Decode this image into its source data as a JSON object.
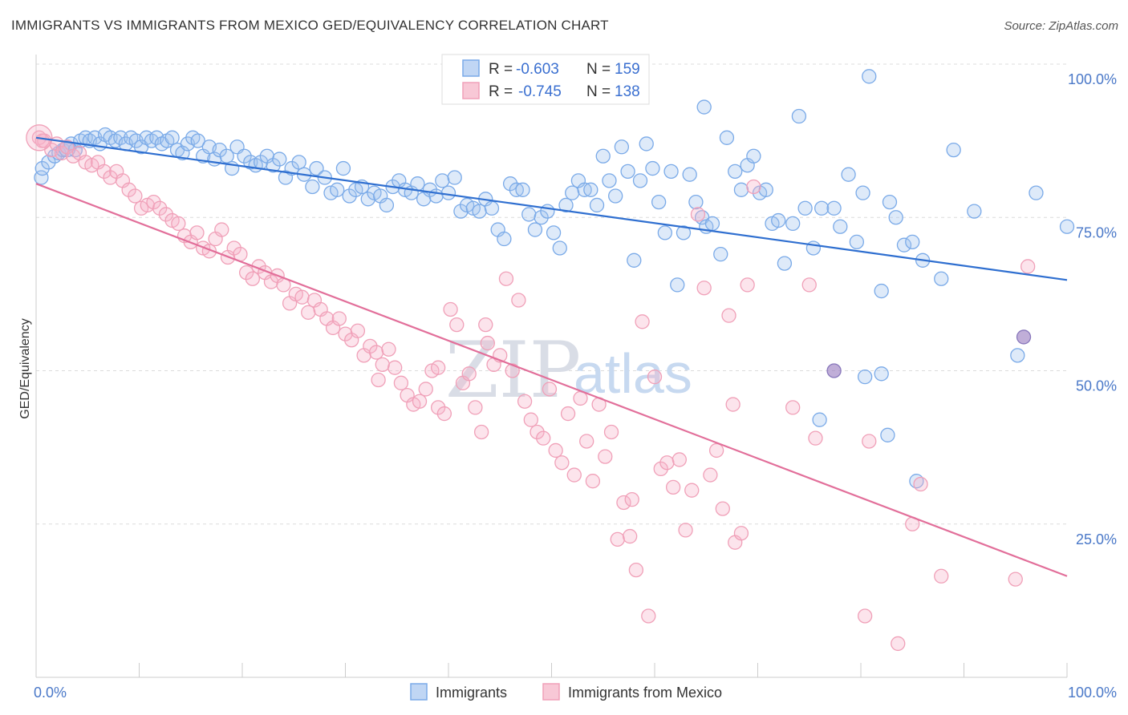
{
  "header": {
    "title": "IMMIGRANTS VS IMMIGRANTS FROM MEXICO GED/EQUIVALENCY CORRELATION CHART",
    "source": "Source: ZipAtlas.com"
  },
  "watermark": {
    "zip": "ZIP",
    "atlas": "atlas"
  },
  "legend_top": {
    "rows": [
      {
        "r_label": "R =",
        "r_value": "-0.603",
        "n_label": "N =",
        "n_value": "159",
        "color": "#7aaae8"
      },
      {
        "r_label": "R =",
        "r_value": "-0.745",
        "n_label": "N =",
        "n_value": "138",
        "color": "#f0a0b8"
      }
    ]
  },
  "legend_bottom": {
    "items": [
      {
        "label": "Immigrants",
        "color": "#7aaae8"
      },
      {
        "label": "Immigrants from Mexico",
        "color": "#f0a0b8"
      }
    ]
  },
  "chart_data": {
    "type": "scatter",
    "title": "IMMIGRANTS VS IMMIGRANTS FROM MEXICO GED/EQUIVALENCY CORRELATION CHART",
    "xlabel": "",
    "ylabel": "GED/Equivalency",
    "xlim": [
      0,
      100
    ],
    "ylim": [
      0,
      100
    ],
    "x_tick_labels": [
      "0.0%",
      "100.0%"
    ],
    "y_tick_labels": [
      {
        "value": 100,
        "label": "100.0%"
      },
      {
        "value": 75,
        "label": "75.0%"
      },
      {
        "value": 50,
        "label": "50.0%"
      },
      {
        "value": 25,
        "label": "25.0%"
      }
    ],
    "grid": true,
    "legend": "top-center",
    "series": [
      {
        "name": "Immigrants",
        "color": "#7aaae8",
        "line_color": "#2f6fd0",
        "trend": {
          "x": [
            0,
            100
          ],
          "y": [
            88.0,
            64.8
          ]
        },
        "points": [
          [
            0.5,
            81.5
          ],
          [
            0.6,
            83
          ],
          [
            1.2,
            84
          ],
          [
            1.8,
            85
          ],
          [
            2.2,
            85.5
          ],
          [
            2.6,
            86
          ],
          [
            3,
            86.5
          ],
          [
            3.4,
            87
          ],
          [
            3.8,
            86
          ],
          [
            4.3,
            87.5
          ],
          [
            4.8,
            88
          ],
          [
            5.2,
            87.5
          ],
          [
            5.7,
            88
          ],
          [
            6.2,
            87
          ],
          [
            6.7,
            88.5
          ],
          [
            7.2,
            88
          ],
          [
            7.7,
            87.5
          ],
          [
            8.2,
            88
          ],
          [
            8.7,
            87
          ],
          [
            9.2,
            88
          ],
          [
            9.7,
            87.5
          ],
          [
            10.2,
            86.5
          ],
          [
            10.7,
            88
          ],
          [
            11.2,
            87.5
          ],
          [
            11.7,
            88
          ],
          [
            12.2,
            87
          ],
          [
            12.7,
            87.5
          ],
          [
            13.2,
            88
          ],
          [
            13.7,
            86
          ],
          [
            14.2,
            85.5
          ],
          [
            14.7,
            87
          ],
          [
            15.2,
            88
          ],
          [
            15.7,
            87.5
          ],
          [
            16.2,
            85
          ],
          [
            16.8,
            86.5
          ],
          [
            17.3,
            84.5
          ],
          [
            17.8,
            86
          ],
          [
            18.5,
            85
          ],
          [
            19,
            83
          ],
          [
            19.5,
            86.5
          ],
          [
            20.2,
            85
          ],
          [
            20.8,
            84
          ],
          [
            21.3,
            83.5
          ],
          [
            21.8,
            84
          ],
          [
            22.4,
            85
          ],
          [
            23,
            83.5
          ],
          [
            23.6,
            84.5
          ],
          [
            24.2,
            81.5
          ],
          [
            24.8,
            83
          ],
          [
            25.5,
            84
          ],
          [
            26,
            82
          ],
          [
            26.8,
            80
          ],
          [
            27.2,
            83
          ],
          [
            28,
            81.5
          ],
          [
            28.6,
            79
          ],
          [
            29.2,
            79.5
          ],
          [
            29.8,
            83
          ],
          [
            30.4,
            78.5
          ],
          [
            31,
            79.5
          ],
          [
            31.6,
            80
          ],
          [
            32.2,
            78
          ],
          [
            32.8,
            79
          ],
          [
            33.4,
            78.5
          ],
          [
            34,
            77
          ],
          [
            34.6,
            80
          ],
          [
            35.2,
            81
          ],
          [
            35.8,
            79.5
          ],
          [
            36.4,
            79
          ],
          [
            37,
            80.5
          ],
          [
            37.6,
            78
          ],
          [
            38.2,
            79.5
          ],
          [
            38.8,
            78.5
          ],
          [
            39.4,
            81
          ],
          [
            40,
            79
          ],
          [
            40.6,
            81.5
          ],
          [
            41.2,
            76
          ],
          [
            41.8,
            77
          ],
          [
            42.4,
            76.5
          ],
          [
            43,
            76
          ],
          [
            43.6,
            78
          ],
          [
            44.2,
            76.5
          ],
          [
            44.8,
            73
          ],
          [
            45.4,
            71.5
          ],
          [
            46,
            80.5
          ],
          [
            46.6,
            79.5
          ],
          [
            47.2,
            79.5
          ],
          [
            47.8,
            75.5
          ],
          [
            48.4,
            73
          ],
          [
            49,
            75
          ],
          [
            49.6,
            76
          ],
          [
            50.2,
            72.5
          ],
          [
            50.8,
            70
          ],
          [
            51.4,
            77
          ],
          [
            52,
            79
          ],
          [
            52.6,
            81
          ],
          [
            53.2,
            79.5
          ],
          [
            53.8,
            79.5
          ],
          [
            54.4,
            77
          ],
          [
            55,
            85
          ],
          [
            55.6,
            81
          ],
          [
            56.2,
            78.5
          ],
          [
            56.8,
            86.5
          ],
          [
            57.4,
            82.5
          ],
          [
            58,
            68
          ],
          [
            58.6,
            81
          ],
          [
            59.2,
            87
          ],
          [
            59.8,
            83
          ],
          [
            60.4,
            77.5
          ],
          [
            61,
            72.5
          ],
          [
            61.6,
            82.5
          ],
          [
            62.2,
            64
          ],
          [
            62.8,
            72.5
          ],
          [
            63.4,
            82
          ],
          [
            64,
            77.5
          ],
          [
            64.6,
            75
          ],
          [
            65,
            73.5
          ],
          [
            65.6,
            74
          ],
          [
            66.4,
            69
          ],
          [
            67,
            88
          ],
          [
            67.8,
            82.5
          ],
          [
            68.4,
            79.5
          ],
          [
            69,
            83.5
          ],
          [
            69.6,
            85
          ],
          [
            70.2,
            79
          ],
          [
            70.8,
            79.5
          ],
          [
            71.4,
            74
          ],
          [
            72,
            74.5
          ],
          [
            72.6,
            67.5
          ],
          [
            73.4,
            74
          ],
          [
            74,
            91.5
          ],
          [
            74.6,
            76.5
          ],
          [
            75.4,
            70
          ],
          [
            76.2,
            76.5
          ],
          [
            77.4,
            76.5
          ],
          [
            78,
            73.5
          ],
          [
            78.8,
            82
          ],
          [
            79.6,
            71
          ],
          [
            80.2,
            79
          ],
          [
            80.8,
            98
          ],
          [
            82,
            63
          ],
          [
            82.8,
            77.5
          ],
          [
            83.4,
            75
          ],
          [
            84.2,
            70.5
          ],
          [
            85,
            71
          ],
          [
            86,
            68
          ],
          [
            87.8,
            65
          ],
          [
            89,
            86
          ],
          [
            91,
            76
          ],
          [
            95.2,
            52.5
          ],
          [
            97,
            79
          ],
          [
            100,
            73.5
          ],
          [
            64.8,
            93
          ],
          [
            76,
            42
          ],
          [
            82.6,
            39.5
          ],
          [
            85.4,
            32
          ],
          [
            80.4,
            49
          ],
          [
            82,
            49.5
          ]
        ]
      },
      {
        "name": "Immigrants from Mexico",
        "color": "#f0a0b8",
        "line_color": "#e26f9a",
        "trend": {
          "x": [
            0,
            100
          ],
          "y": [
            80.5,
            16.5
          ]
        },
        "points": [
          [
            0.3,
            88
          ],
          [
            0.8,
            87.5
          ],
          [
            1.5,
            86
          ],
          [
            2,
            87
          ],
          [
            2.5,
            85.5
          ],
          [
            3,
            86.5
          ],
          [
            3.6,
            85
          ],
          [
            4.2,
            85.5
          ],
          [
            4.8,
            84
          ],
          [
            5.4,
            83.5
          ],
          [
            6,
            84
          ],
          [
            6.6,
            82.5
          ],
          [
            7.2,
            81.5
          ],
          [
            7.8,
            82.5
          ],
          [
            8.4,
            81
          ],
          [
            9,
            79.5
          ],
          [
            9.6,
            78.5
          ],
          [
            10.2,
            76.5
          ],
          [
            10.8,
            77
          ],
          [
            11.4,
            77.5
          ],
          [
            12,
            76.5
          ],
          [
            12.6,
            75.5
          ],
          [
            13.2,
            74.5
          ],
          [
            13.8,
            74
          ],
          [
            14.4,
            72
          ],
          [
            15,
            71
          ],
          [
            15.6,
            72.5
          ],
          [
            16.2,
            70
          ],
          [
            16.8,
            69.5
          ],
          [
            17.4,
            71.5
          ],
          [
            18,
            73
          ],
          [
            18.6,
            68.5
          ],
          [
            19.2,
            70
          ],
          [
            19.8,
            69
          ],
          [
            20.4,
            66
          ],
          [
            21,
            65
          ],
          [
            21.6,
            67
          ],
          [
            22.2,
            66
          ],
          [
            22.8,
            64.5
          ],
          [
            23.4,
            65.5
          ],
          [
            24,
            64
          ],
          [
            24.6,
            61
          ],
          [
            25.2,
            62.5
          ],
          [
            25.8,
            62
          ],
          [
            26.4,
            59.5
          ],
          [
            27,
            61.5
          ],
          [
            27.6,
            60
          ],
          [
            28.2,
            58.5
          ],
          [
            28.8,
            57
          ],
          [
            29.4,
            58.5
          ],
          [
            30,
            56
          ],
          [
            30.6,
            55
          ],
          [
            31.2,
            56.5
          ],
          [
            31.8,
            52.5
          ],
          [
            32.4,
            54
          ],
          [
            33,
            53
          ],
          [
            33.6,
            51
          ],
          [
            34.2,
            53.5
          ],
          [
            34.8,
            50.5
          ],
          [
            35.4,
            48
          ],
          [
            36,
            46
          ],
          [
            36.6,
            44.5
          ],
          [
            37.2,
            45
          ],
          [
            37.8,
            47
          ],
          [
            38.4,
            50
          ],
          [
            39,
            44
          ],
          [
            39.6,
            43
          ],
          [
            40.2,
            60
          ],
          [
            40.8,
            57.5
          ],
          [
            41.4,
            48
          ],
          [
            42,
            49.5
          ],
          [
            42.6,
            44
          ],
          [
            43.2,
            40
          ],
          [
            43.8,
            54.5
          ],
          [
            44.4,
            51
          ],
          [
            45,
            52.5
          ],
          [
            45.6,
            65
          ],
          [
            46.2,
            50
          ],
          [
            46.8,
            61.5
          ],
          [
            47.4,
            45
          ],
          [
            48,
            42
          ],
          [
            48.6,
            40
          ],
          [
            49.2,
            39
          ],
          [
            49.8,
            47
          ],
          [
            50.4,
            37
          ],
          [
            51,
            35
          ],
          [
            51.6,
            43
          ],
          [
            52.2,
            33
          ],
          [
            52.8,
            45.5
          ],
          [
            53.4,
            38.5
          ],
          [
            54,
            32
          ],
          [
            54.6,
            44.5
          ],
          [
            55.2,
            36
          ],
          [
            55.8,
            40
          ],
          [
            56.4,
            22.5
          ],
          [
            57,
            28.5
          ],
          [
            57.6,
            23
          ],
          [
            58.2,
            17.5
          ],
          [
            58.8,
            58
          ],
          [
            59.4,
            10
          ],
          [
            60,
            49
          ],
          [
            60.6,
            34
          ],
          [
            61.2,
            35
          ],
          [
            61.8,
            31
          ],
          [
            62.4,
            35.5
          ],
          [
            63,
            24
          ],
          [
            63.6,
            30.5
          ],
          [
            64.2,
            75.5
          ],
          [
            64.8,
            63.5
          ],
          [
            65.4,
            33
          ],
          [
            66,
            37
          ],
          [
            66.6,
            27.5
          ],
          [
            67.2,
            59
          ],
          [
            67.8,
            22
          ],
          [
            68.4,
            23.5
          ],
          [
            69,
            64
          ],
          [
            69.6,
            80
          ],
          [
            75,
            64
          ],
          [
            75.6,
            39
          ],
          [
            80.4,
            10
          ],
          [
            83.6,
            5.5
          ],
          [
            85,
            25
          ],
          [
            85.8,
            31.5
          ],
          [
            87.8,
            16.5
          ],
          [
            95,
            16
          ],
          [
            96.2,
            67
          ],
          [
            33.2,
            48.5
          ],
          [
            39,
            50.5
          ],
          [
            43.6,
            57.5
          ],
          [
            57.8,
            29
          ],
          [
            67.6,
            44.5
          ],
          [
            73.4,
            44
          ],
          [
            80.8,
            38.5
          ],
          [
            0.6,
            87.5
          ]
        ]
      }
    ]
  }
}
